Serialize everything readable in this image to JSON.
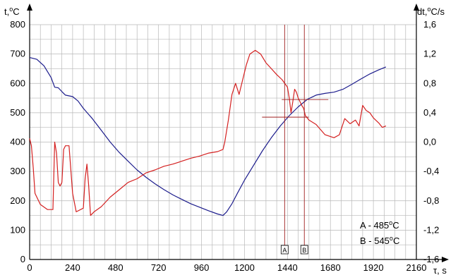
{
  "chart_data": {
    "type": "line",
    "x_axis": {
      "label_main": "τ, s",
      "min": 0,
      "max": 2160,
      "ticks": [
        "0",
        "240",
        "480",
        "720",
        "960",
        "1200",
        "1440",
        "1680",
        "1920",
        "2160"
      ]
    },
    "y_left": {
      "label_main": "t,",
      "label_sup": "o",
      "label_unit": "C",
      "min": 0,
      "max": 800,
      "ticks": [
        "0",
        "100",
        "200",
        "300",
        "400",
        "500",
        "600",
        "700",
        "800"
      ]
    },
    "y_right": {
      "label_main": "dt,",
      "label_sup": "o",
      "label_unit": "C/s",
      "min": -1.6,
      "max": 1.6,
      "ticks": [
        "-1,6",
        "-1,2",
        "-0,8",
        "-0,4",
        "0,0",
        "0,4",
        "0,8",
        "1,2",
        "1,6"
      ]
    },
    "grid": true,
    "colors": {
      "temperature": "#1c1c8c",
      "derivative": "#d42020",
      "markers": "#a02020",
      "grid": "#b8b8b8"
    },
    "series": [
      {
        "axis": "left",
        "color": "#1c1c8c",
        "points": [
          [
            0,
            688
          ],
          [
            40,
            682
          ],
          [
            80,
            660
          ],
          [
            120,
            620
          ],
          [
            140,
            587
          ],
          [
            160,
            585
          ],
          [
            180,
            572
          ],
          [
            200,
            560
          ],
          [
            240,
            555
          ],
          [
            270,
            540
          ],
          [
            300,
            515
          ],
          [
            350,
            480
          ],
          [
            400,
            440
          ],
          [
            450,
            400
          ],
          [
            500,
            365
          ],
          [
            550,
            335
          ],
          [
            600,
            305
          ],
          [
            650,
            280
          ],
          [
            700,
            258
          ],
          [
            750,
            238
          ],
          [
            800,
            220
          ],
          [
            850,
            205
          ],
          [
            900,
            190
          ],
          [
            950,
            178
          ],
          [
            1000,
            166
          ],
          [
            1050,
            155
          ],
          [
            1080,
            150
          ],
          [
            1100,
            162
          ],
          [
            1130,
            190
          ],
          [
            1160,
            225
          ],
          [
            1200,
            270
          ],
          [
            1250,
            320
          ],
          [
            1300,
            370
          ],
          [
            1350,
            415
          ],
          [
            1400,
            455
          ],
          [
            1450,
            490
          ],
          [
            1500,
            520
          ],
          [
            1550,
            545
          ],
          [
            1600,
            560
          ],
          [
            1650,
            566
          ],
          [
            1700,
            570
          ],
          [
            1750,
            580
          ],
          [
            1800,
            597
          ],
          [
            1850,
            615
          ],
          [
            1900,
            632
          ],
          [
            1950,
            646
          ],
          [
            1990,
            656
          ]
        ]
      },
      {
        "axis": "right",
        "color": "#d42020",
        "points": [
          [
            0,
            0.05
          ],
          [
            10,
            -0.05
          ],
          [
            20,
            -0.35
          ],
          [
            30,
            -0.7
          ],
          [
            60,
            -0.85
          ],
          [
            100,
            -0.92
          ],
          [
            130,
            -0.92
          ],
          [
            140,
            0.0
          ],
          [
            150,
            -0.15
          ],
          [
            160,
            -0.55
          ],
          [
            170,
            -0.6
          ],
          [
            180,
            -0.55
          ],
          [
            190,
            -0.1
          ],
          [
            200,
            -0.05
          ],
          [
            220,
            -0.05
          ],
          [
            240,
            -0.7
          ],
          [
            260,
            -0.95
          ],
          [
            300,
            -0.9
          ],
          [
            310,
            -0.5
          ],
          [
            320,
            -0.3
          ],
          [
            330,
            -0.6
          ],
          [
            340,
            -1.0
          ],
          [
            360,
            -0.95
          ],
          [
            400,
            -0.88
          ],
          [
            450,
            -0.75
          ],
          [
            500,
            -0.65
          ],
          [
            550,
            -0.55
          ],
          [
            600,
            -0.5
          ],
          [
            650,
            -0.42
          ],
          [
            700,
            -0.38
          ],
          [
            750,
            -0.33
          ],
          [
            800,
            -0.3
          ],
          [
            850,
            -0.26
          ],
          [
            900,
            -0.22
          ],
          [
            950,
            -0.19
          ],
          [
            1000,
            -0.15
          ],
          [
            1050,
            -0.13
          ],
          [
            1080,
            -0.1
          ],
          [
            1090,
            0.0
          ],
          [
            1110,
            0.3
          ],
          [
            1130,
            0.65
          ],
          [
            1150,
            0.8
          ],
          [
            1170,
            0.65
          ],
          [
            1190,
            0.85
          ],
          [
            1210,
            1.05
          ],
          [
            1230,
            1.2
          ],
          [
            1260,
            1.25
          ],
          [
            1290,
            1.2
          ],
          [
            1320,
            1.08
          ],
          [
            1350,
            1.0
          ],
          [
            1380,
            0.92
          ],
          [
            1410,
            0.85
          ],
          [
            1440,
            0.75
          ],
          [
            1450,
            0.6
          ],
          [
            1460,
            0.4
          ],
          [
            1470,
            0.55
          ],
          [
            1480,
            0.72
          ],
          [
            1490,
            0.68
          ],
          [
            1500,
            0.6
          ],
          [
            1510,
            0.55
          ],
          [
            1520,
            0.5
          ],
          [
            1530,
            0.46
          ],
          [
            1540,
            0.36
          ],
          [
            1560,
            0.3
          ],
          [
            1600,
            0.24
          ],
          [
            1650,
            0.1
          ],
          [
            1700,
            0.06
          ],
          [
            1730,
            0.1
          ],
          [
            1760,
            0.32
          ],
          [
            1790,
            0.25
          ],
          [
            1820,
            0.3
          ],
          [
            1840,
            0.22
          ],
          [
            1860,
            0.5
          ],
          [
            1880,
            0.43
          ],
          [
            1900,
            0.4
          ],
          [
            1920,
            0.33
          ],
          [
            1950,
            0.26
          ],
          [
            1970,
            0.2
          ],
          [
            1990,
            0.22
          ]
        ]
      }
    ],
    "markers": [
      {
        "label": "A",
        "x": 1440,
        "temp": 485
      },
      {
        "label": "B",
        "x": 1550,
        "temp": 545
      }
    ],
    "annotations": [
      {
        "prefix": "A - 485",
        "sup": "o",
        "unit": "C"
      },
      {
        "prefix": "B - 545",
        "sup": "o",
        "unit": "C"
      }
    ]
  }
}
